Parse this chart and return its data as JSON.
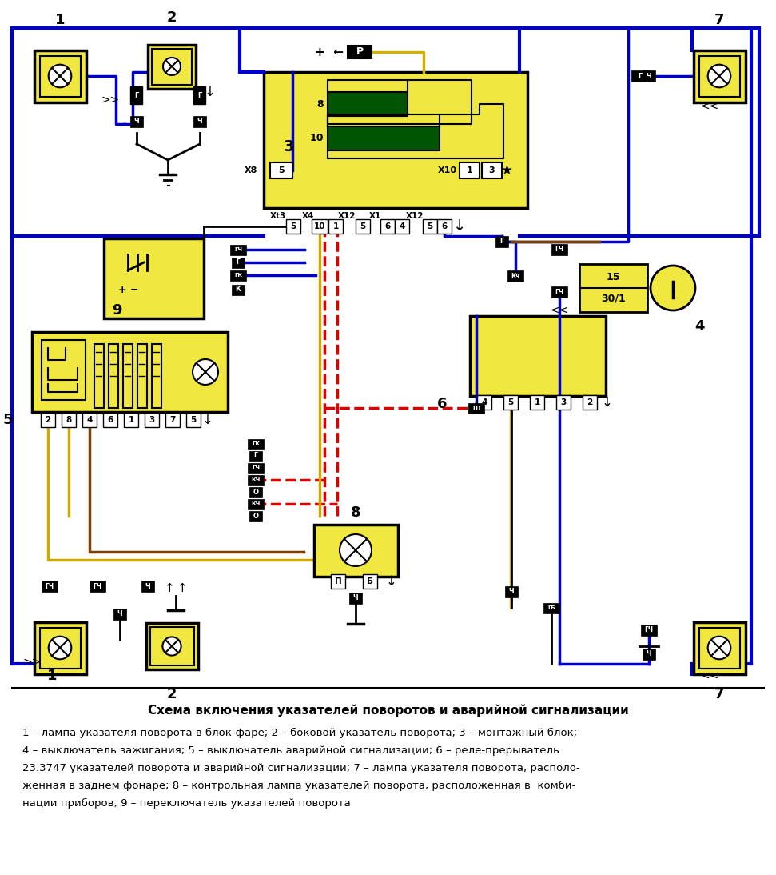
{
  "title": "Схема включения указателей поворотов и аварийной сигнализации",
  "legend_lines": [
    "1 – лампа указателя поворота в блок-фаре; 2 – боковой указатель поворота; 3 – монтажный блок;",
    "4 – выключатель зажигания; 5 – выключатель аварийной сигнализации; 6 – реле-прерыватель",
    "23.3747 указателей поворота и аварийной сигнализации; 7 – лампа указателя поворота, располо-",
    "женная в заднем фонаре; 8 – контрольная лампа указателей поворота, расположенная в  комби-",
    "нации приборов; 9 – переключатель указателей поворота"
  ],
  "bg": "#ffffff",
  "yellow": "#f0e840",
  "black": "#000000",
  "white": "#ffffff",
  "blue": "#0000cc",
  "red": "#dd0000",
  "brown": "#7b3f00",
  "darkgreen": "#005500",
  "yellow_wire": "#ccaa00",
  "tan": "#d4b000"
}
